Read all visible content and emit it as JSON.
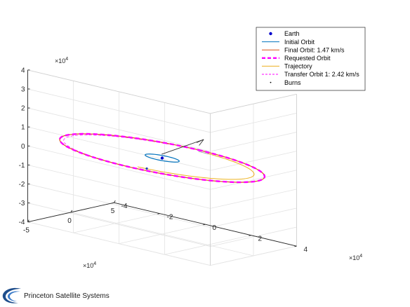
{
  "chart_data": {
    "type": "line",
    "view": "3d",
    "grid": true,
    "legend_placement": "top-right",
    "x_axis": {
      "ticks": [
        -5,
        0,
        5
      ],
      "multiplier": "×10",
      "exponent": "4",
      "range": [
        -5,
        5
      ]
    },
    "y_axis": {
      "ticks": [
        -4,
        -2,
        0,
        2,
        4
      ],
      "multiplier": "×10",
      "exponent": "4",
      "range": [
        -4,
        4
      ]
    },
    "z_axis": {
      "ticks": [
        -4,
        -3,
        -2,
        -1,
        0,
        1,
        2,
        3,
        4
      ],
      "multiplier": "×10",
      "exponent": "4",
      "range": [
        -4,
        4
      ]
    },
    "series": [
      {
        "name": "Earth",
        "style": "dot",
        "color": "#0000cc",
        "radius_e4": 0
      },
      {
        "name": "Initial Orbit",
        "style": "solid",
        "color": "#0072bd",
        "radius_e4": 0.7
      },
      {
        "name": "Final Orbit: 1.47 km/s",
        "style": "solid",
        "color": "#d95319",
        "radius_e4": 4.2
      },
      {
        "name": "Requested Orbit",
        "style": "dashed-thick",
        "color": "#ff00ff",
        "radius_e4": 4.2
      },
      {
        "name": "Trajectory",
        "style": "solid",
        "color": "#edb120"
      },
      {
        "name": "Transfer Orbit 1: 2.42 km/s",
        "style": "dashed",
        "color": "#ff00ff"
      },
      {
        "name": "Burns",
        "style": "point",
        "color": "#000000"
      }
    ]
  },
  "footer": {
    "logo_text": "Princeton Satellite Systems"
  }
}
